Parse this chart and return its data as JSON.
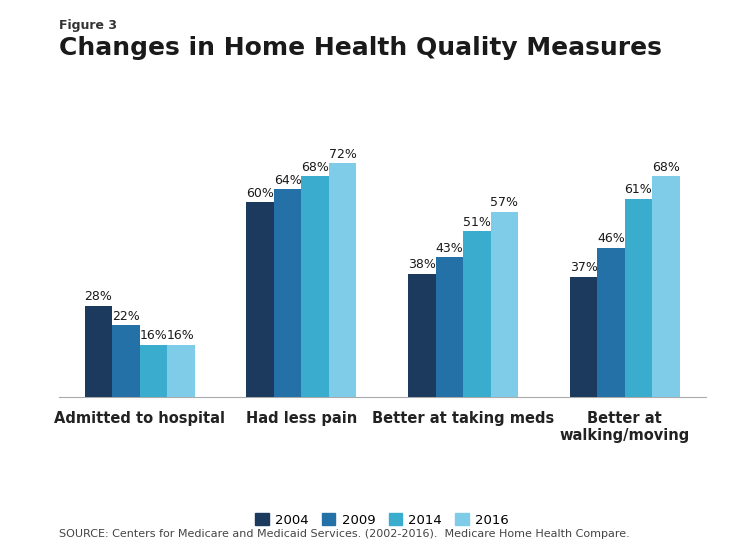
{
  "figure_label": "Figure 3",
  "title": "Changes in Home Health Quality Measures",
  "categories": [
    "Admitted to hospital",
    "Had less pain",
    "Better at taking meds",
    "Better at\nwalking/moving"
  ],
  "years": [
    "2004",
    "2009",
    "2014",
    "2016"
  ],
  "values": [
    [
      28,
      22,
      16,
      16
    ],
    [
      60,
      64,
      68,
      72
    ],
    [
      38,
      43,
      51,
      57
    ],
    [
      37,
      46,
      61,
      68
    ]
  ],
  "colors": [
    "#1c3a5e",
    "#2471a8",
    "#3aadce",
    "#7fcce8"
  ],
  "bar_width": 0.17,
  "ylim": [
    0,
    85
  ],
  "source_text": "SOURCE: Centers for Medicare and Medicaid Services. (2002-2016).  Medicare Home Health Compare.",
  "background_color": "#ffffff",
  "label_fontsize": 9,
  "title_fontsize": 18,
  "figure_label_fontsize": 9,
  "axis_label_fontsize": 10.5,
  "source_fontsize": 8,
  "legend_fontsize": 9.5
}
